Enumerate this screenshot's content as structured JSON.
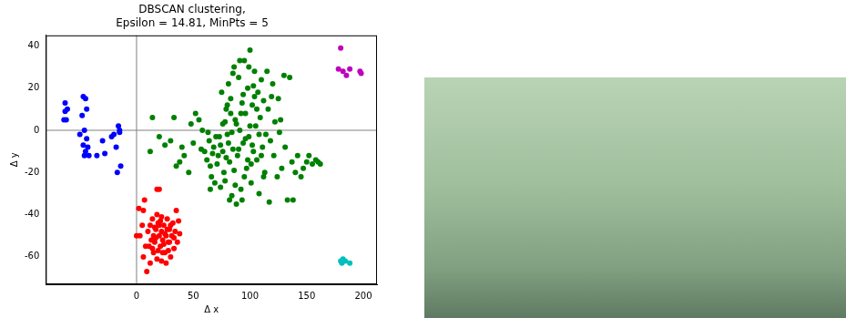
{
  "chart_data": {
    "type": "scatter",
    "title": [
      "DBSCAN clustering,",
      "Epsilon = 14.81, MinPts = 5"
    ],
    "x_label": "Δ x",
    "y_label": "Δ y",
    "xlim": [
      -80,
      212
    ],
    "ylim": [
      -73,
      45
    ],
    "xticks": [
      0,
      50,
      100,
      150,
      200
    ],
    "yticks": [
      -60,
      -40,
      -20,
      0,
      20,
      40
    ],
    "hlines": [
      0
    ],
    "vlines": [
      0
    ],
    "grid": false,
    "marker": "circle",
    "series": [
      {
        "color": "#0000ff",
        "points": [
          [
            -63,
            13
          ],
          [
            -63,
            9
          ],
          [
            -62,
            5
          ],
          [
            -64,
            5
          ],
          [
            -61,
            10
          ],
          [
            -47,
            16
          ],
          [
            -45,
            15
          ],
          [
            -44,
            10
          ],
          [
            -48,
            7
          ],
          [
            -50,
            -2
          ],
          [
            -46,
            0
          ],
          [
            -44,
            -4
          ],
          [
            -47,
            -7
          ],
          [
            -45,
            -10
          ],
          [
            -42,
            -12
          ],
          [
            -46,
            -12
          ],
          [
            -30,
            -5
          ],
          [
            -28,
            -11
          ],
          [
            -35,
            -12
          ],
          [
            -20,
            -2
          ],
          [
            -16,
            2
          ],
          [
            -15,
            -1
          ],
          [
            -18,
            -8
          ],
          [
            -14,
            -17
          ],
          [
            -17,
            -20
          ],
          [
            -15,
            0
          ],
          [
            -22,
            -3
          ],
          [
            -43,
            -8
          ]
        ]
      },
      {
        "color": "#008000",
        "points": [
          [
            12,
            -10
          ],
          [
            20,
            -3
          ],
          [
            25,
            -7
          ],
          [
            30,
            -5
          ],
          [
            33,
            6
          ],
          [
            40,
            -8
          ],
          [
            38,
            -15
          ],
          [
            42,
            -12
          ],
          [
            46,
            -20
          ],
          [
            50,
            -6
          ],
          [
            52,
            8
          ],
          [
            55,
            5
          ],
          [
            58,
            0
          ],
          [
            60,
            -10
          ],
          [
            62,
            -14
          ],
          [
            64,
            -5
          ],
          [
            65,
            -17
          ],
          [
            66,
            -22
          ],
          [
            68,
            -8
          ],
          [
            70,
            -3
          ],
          [
            72,
            -12
          ],
          [
            74,
            -7
          ],
          [
            75,
            18
          ],
          [
            76,
            3
          ],
          [
            77,
            -20
          ],
          [
            78,
            -24
          ],
          [
            79,
            10
          ],
          [
            80,
            -2
          ],
          [
            81,
            22
          ],
          [
            82,
            -15
          ],
          [
            83,
            15
          ],
          [
            84,
            -31
          ],
          [
            85,
            -9
          ],
          [
            86,
            30
          ],
          [
            87,
            5
          ],
          [
            88,
            -35
          ],
          [
            89,
            -12
          ],
          [
            90,
            25
          ],
          [
            91,
            0
          ],
          [
            92,
            -28
          ],
          [
            93,
            13
          ],
          [
            94,
            -6
          ],
          [
            95,
            33
          ],
          [
            96,
            8
          ],
          [
            97,
            -18
          ],
          [
            98,
            20
          ],
          [
            99,
            -3
          ],
          [
            100,
            38
          ],
          [
            101,
            -25
          ],
          [
            102,
            12
          ],
          [
            103,
            -10
          ],
          [
            104,
            28
          ],
          [
            105,
            2
          ],
          [
            106,
            -14
          ],
          [
            107,
            18
          ],
          [
            108,
            -30
          ],
          [
            109,
            6
          ],
          [
            110,
            24
          ],
          [
            111,
            -8
          ],
          [
            112,
            14
          ],
          [
            113,
            -20
          ],
          [
            114,
            -2
          ],
          [
            115,
            28
          ],
          [
            116,
            10
          ],
          [
            117,
            -34
          ],
          [
            118,
            -5
          ],
          [
            120,
            22
          ],
          [
            121,
            -12
          ],
          [
            122,
            4
          ],
          [
            124,
            -22
          ],
          [
            125,
            15
          ],
          [
            126,
            -1
          ],
          [
            128,
            -18
          ],
          [
            130,
            26
          ],
          [
            131,
            -8
          ],
          [
            133,
            -33
          ],
          [
            135,
            25
          ],
          [
            137,
            -15
          ],
          [
            140,
            -20
          ],
          [
            142,
            -12
          ],
          [
            145,
            -22
          ],
          [
            147,
            -18
          ],
          [
            150,
            -15
          ],
          [
            152,
            -12
          ],
          [
            155,
            -16
          ],
          [
            158,
            -14
          ],
          [
            160,
            -15
          ],
          [
            162,
            -16
          ],
          [
            14,
            6
          ],
          [
            35,
            -17
          ],
          [
            48,
            3
          ],
          [
            57,
            -9
          ],
          [
            63,
            -1
          ],
          [
            67,
            -11
          ],
          [
            71,
            -16
          ],
          [
            73,
            -3
          ],
          [
            76,
            -10
          ],
          [
            79,
            -13
          ],
          [
            81,
            -6
          ],
          [
            84,
            -1
          ],
          [
            86,
            -19
          ],
          [
            88,
            3
          ],
          [
            90,
            -9
          ],
          [
            92,
            8
          ],
          [
            94,
            17
          ],
          [
            96,
            -4
          ],
          [
            98,
            -14
          ],
          [
            100,
            2
          ],
          [
            102,
            -7
          ],
          [
            104,
            16
          ],
          [
            106,
            10
          ],
          [
            108,
            -2
          ],
          [
            110,
            -12
          ],
          [
            112,
            -22
          ],
          [
            85,
            27
          ],
          [
            91,
            33
          ],
          [
            80,
            12
          ],
          [
            99,
            30
          ],
          [
            87,
            -26
          ],
          [
            93,
            -33
          ],
          [
            103,
            21
          ],
          [
            78,
            4
          ],
          [
            69,
            -25
          ],
          [
            83,
            8
          ],
          [
            95,
            -22
          ],
          [
            101,
            -16
          ],
          [
            119,
            16
          ],
          [
            127,
            5
          ],
          [
            138,
            -33
          ],
          [
            74,
            -27
          ],
          [
            65,
            -28
          ],
          [
            82,
            -33
          ]
        ]
      },
      {
        "color": "#ff0000",
        "points": [
          [
            2,
            -37
          ],
          [
            7,
            -33
          ],
          [
            6,
            -38
          ],
          [
            18,
            -28
          ],
          [
            20,
            -28
          ],
          [
            0,
            -50
          ],
          [
            3,
            -50
          ],
          [
            5,
            -45
          ],
          [
            8,
            -55
          ],
          [
            6,
            -60
          ],
          [
            9,
            -67
          ],
          [
            12,
            -63
          ],
          [
            10,
            -48
          ],
          [
            12,
            -45
          ],
          [
            14,
            -42
          ],
          [
            15,
            -50
          ],
          [
            16,
            -53
          ],
          [
            17,
            -47
          ],
          [
            18,
            -40
          ],
          [
            19,
            -44
          ],
          [
            20,
            -50
          ],
          [
            21,
            -55
          ],
          [
            22,
            -48
          ],
          [
            23,
            -52
          ],
          [
            24,
            -45
          ],
          [
            25,
            -58
          ],
          [
            26,
            -50
          ],
          [
            27,
            -42
          ],
          [
            28,
            -53
          ],
          [
            29,
            -47
          ],
          [
            30,
            -60
          ],
          [
            31,
            -50
          ],
          [
            32,
            -44
          ],
          [
            33,
            -56
          ],
          [
            34,
            -48
          ],
          [
            35,
            -38
          ],
          [
            36,
            -53
          ],
          [
            37,
            -43
          ],
          [
            38,
            -49
          ],
          [
            15,
            -58
          ],
          [
            18,
            -61
          ],
          [
            22,
            -62
          ],
          [
            26,
            -63
          ],
          [
            14,
            -56
          ],
          [
            20,
            -45
          ],
          [
            24,
            -54
          ],
          [
            17,
            -51
          ],
          [
            21,
            -43
          ],
          [
            27,
            -47
          ],
          [
            13,
            -52
          ],
          [
            19,
            -57
          ],
          [
            23,
            -58
          ],
          [
            28,
            -57
          ],
          [
            30,
            -45
          ],
          [
            33,
            -51
          ],
          [
            11,
            -55
          ],
          [
            25,
            -49
          ],
          [
            16,
            -46
          ],
          [
            29,
            -53
          ],
          [
            22,
            -41
          ]
        ]
      },
      {
        "color": "#bf00bf",
        "points": [
          [
            180,
            39
          ],
          [
            178,
            29
          ],
          [
            182,
            28
          ],
          [
            185,
            26
          ],
          [
            188,
            29
          ],
          [
            197,
            28
          ],
          [
            198,
            27
          ]
        ]
      },
      {
        "color": "#00bfbf",
        "points": [
          [
            180,
            -62
          ],
          [
            182,
            -61
          ],
          [
            181,
            -63
          ],
          [
            188,
            -63
          ],
          [
            184,
            -62
          ]
        ]
      }
    ]
  }
}
